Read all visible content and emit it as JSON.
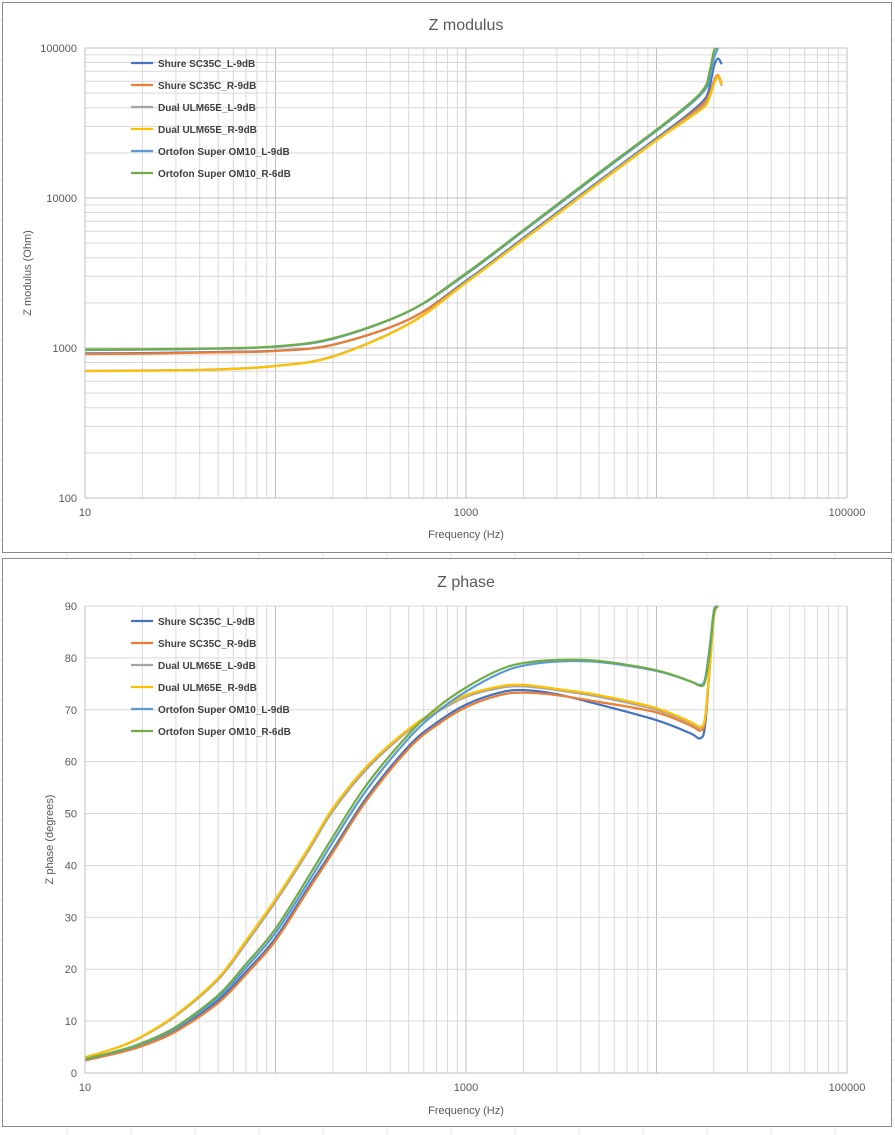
{
  "chart_data": [
    {
      "type": "line",
      "title": "Z modulus",
      "xlabel": "Frequency (Hz)",
      "ylabel": "Z modulus (Ohm)",
      "xscale": "log",
      "yscale": "log",
      "xlim": [
        10,
        100000
      ],
      "ylim": [
        100,
        100000
      ],
      "x_tick_labels": [
        "10",
        "1000",
        "100000"
      ],
      "y_tick_labels": [
        "100",
        "1000",
        "10000",
        "100000"
      ],
      "grid": true,
      "legend_position": "top-left",
      "series": [
        {
          "name": "Shure SC35C_L-9dB",
          "color": "#4472C4",
          "x": [
            10,
            20,
            50,
            100,
            200,
            500,
            1000,
            2000,
            5000,
            10000,
            15000,
            18000,
            19000,
            20000,
            21000,
            22000
          ],
          "y": [
            920,
            925,
            940,
            960,
            1050,
            1550,
            2800,
            5400,
            13000,
            25000,
            37000,
            46000,
            55000,
            75000,
            85000,
            78000
          ]
        },
        {
          "name": "Shure SC35C_R-9dB",
          "color": "#ED7D31",
          "x": [
            10,
            20,
            50,
            100,
            200,
            500,
            1000,
            2000,
            5000,
            10000,
            15000,
            18000,
            19000,
            20000,
            21000,
            22000
          ],
          "y": [
            910,
            918,
            935,
            955,
            1050,
            1550,
            2750,
            5300,
            12700,
            24500,
            36000,
            44000,
            50000,
            60000,
            66000,
            58000
          ]
        },
        {
          "name": "Dual ULM65E_L-9dB",
          "color": "#A5A5A5",
          "x": [
            10,
            20,
            50,
            100,
            200,
            500,
            1000,
            2000,
            5000,
            10000,
            15000,
            18000,
            19000,
            20000,
            21000,
            22000
          ],
          "y": [
            705,
            708,
            720,
            760,
            880,
            1450,
            2750,
            5300,
            12800,
            24500,
            35000,
            42000,
            48000,
            58000,
            64000,
            56000
          ]
        },
        {
          "name": "Dual ULM65E_R-9dB",
          "color": "#FFC000",
          "x": [
            10,
            20,
            50,
            100,
            200,
            500,
            1000,
            2000,
            5000,
            10000,
            15000,
            18000,
            19000,
            20000,
            21000,
            22000
          ],
          "y": [
            700,
            705,
            718,
            758,
            875,
            1440,
            2720,
            5250,
            12600,
            24200,
            34500,
            41000,
            47000,
            57000,
            65000,
            57000
          ]
        },
        {
          "name": "Ortofon Super OM10_L-9dB",
          "color": "#5B9BD5",
          "x": [
            10,
            20,
            50,
            100,
            200,
            500,
            1000,
            2000,
            5000,
            10000,
            15000,
            18000,
            19000,
            20000,
            21000
          ],
          "y": [
            970,
            975,
            990,
            1020,
            1150,
            1750,
            3100,
            6000,
            14500,
            28000,
            42000,
            53000,
            62000,
            85000,
            100000
          ]
        },
        {
          "name": "Ortofon Super OM10_R-6dB",
          "color": "#70AD47",
          "x": [
            10,
            20,
            50,
            100,
            200,
            500,
            1000,
            2000,
            5000,
            10000,
            15000,
            18000,
            19000,
            20000,
            20500
          ],
          "y": [
            975,
            980,
            995,
            1025,
            1160,
            1760,
            3150,
            6100,
            14800,
            28500,
            43000,
            55000,
            70000,
            95000,
            100000
          ]
        }
      ]
    },
    {
      "type": "line",
      "title": "Z phase",
      "xlabel": "Frequency (Hz)",
      "ylabel": "Z phase (degrees)",
      "xscale": "log",
      "yscale": "linear",
      "xlim": [
        10,
        100000
      ],
      "ylim": [
        0,
        90
      ],
      "x_tick_labels": [
        "10",
        "1000",
        "100000"
      ],
      "y_tick_labels": [
        "0",
        "10",
        "20",
        "30",
        "40",
        "50",
        "60",
        "70",
        "80",
        "90"
      ],
      "grid": true,
      "legend_position": "top-left",
      "series": [
        {
          "name": "Shure SC35C_L-9dB",
          "color": "#4472C4",
          "x": [
            10,
            15,
            20,
            30,
            50,
            70,
            100,
            150,
            200,
            300,
            500,
            700,
            1000,
            1500,
            2000,
            3000,
            5000,
            10000,
            15000,
            17000,
            18000,
            19000,
            20000,
            21000
          ],
          "y": [
            2.5,
            4,
            5.5,
            8.3,
            14,
            19.5,
            26,
            36,
            43,
            53,
            63,
            67.5,
            71,
            73.3,
            73.8,
            73,
            71,
            68,
            65.5,
            64.5,
            67,
            78,
            88,
            90
          ]
        },
        {
          "name": "Shure SC35C_R-9dB",
          "color": "#ED7D31",
          "x": [
            10,
            15,
            20,
            30,
            50,
            70,
            100,
            150,
            200,
            300,
            500,
            700,
            1000,
            1500,
            2000,
            3000,
            5000,
            10000,
            15000,
            17000,
            18000,
            19000,
            20000,
            21000
          ],
          "y": [
            2.4,
            3.9,
            5.2,
            8,
            13.5,
            19,
            25.5,
            35.5,
            42.5,
            52.5,
            62.5,
            67,
            70.5,
            72.8,
            73.3,
            72.8,
            71.5,
            69.5,
            67,
            66,
            68,
            78,
            88,
            90
          ]
        },
        {
          "name": "Dual ULM65E_L-9dB",
          "color": "#A5A5A5",
          "x": [
            10,
            15,
            20,
            30,
            50,
            70,
            100,
            150,
            200,
            300,
            500,
            700,
            1000,
            1500,
            2000,
            3000,
            5000,
            10000,
            15000,
            17000,
            18000,
            19000,
            20000,
            21000
          ],
          "y": [
            3,
            5,
            7,
            11,
            18,
            25,
            33,
            43,
            50.5,
            58.5,
            66,
            69.5,
            72.5,
            74.2,
            74.5,
            73.8,
            72.5,
            70,
            67.5,
            66.5,
            68.5,
            78,
            88,
            90
          ]
        },
        {
          "name": "Dual ULM65E_R-9dB",
          "color": "#FFC000",
          "x": [
            10,
            15,
            20,
            30,
            50,
            70,
            100,
            150,
            200,
            300,
            500,
            700,
            1000,
            1500,
            2000,
            3000,
            5000,
            10000,
            15000,
            17000,
            18000,
            19000,
            20000,
            21000
          ],
          "y": [
            3,
            5,
            7.1,
            11.2,
            18.3,
            25.5,
            33.5,
            43.5,
            51,
            59,
            66.3,
            69.8,
            72.8,
            74.5,
            74.8,
            74,
            72.8,
            70.3,
            67.7,
            66.7,
            68.5,
            78,
            88,
            90
          ]
        },
        {
          "name": "Ortofon Super OM10_L-9dB",
          "color": "#5B9BD5",
          "x": [
            10,
            15,
            20,
            30,
            50,
            70,
            100,
            150,
            200,
            300,
            500,
            700,
            1000,
            1500,
            2000,
            3000,
            5000,
            10000,
            15000,
            17000,
            18000,
            19000,
            20000,
            21000
          ],
          "y": [
            2.6,
            4.2,
            5.6,
            8.6,
            14.5,
            20.3,
            27,
            37,
            44.5,
            54.5,
            64.5,
            69.5,
            73.5,
            77,
            78.5,
            79.3,
            79.2,
            77.5,
            75.5,
            74.8,
            76,
            82,
            89,
            90
          ]
        },
        {
          "name": "Ortofon Super OM10_R-6dB",
          "color": "#70AD47",
          "x": [
            10,
            15,
            20,
            30,
            50,
            70,
            100,
            150,
            200,
            300,
            500,
            700,
            1000,
            1500,
            2000,
            3000,
            5000,
            10000,
            15000,
            17000,
            18000,
            19000,
            20000,
            21000
          ],
          "y": [
            2.7,
            4.3,
            5.8,
            8.9,
            15,
            21,
            27.8,
            38,
            45.5,
            55.5,
            65.3,
            70.3,
            74.3,
            77.7,
            79,
            79.6,
            79.4,
            77.6,
            75.5,
            74.6,
            75.5,
            81,
            88.5,
            90
          ]
        }
      ]
    }
  ]
}
